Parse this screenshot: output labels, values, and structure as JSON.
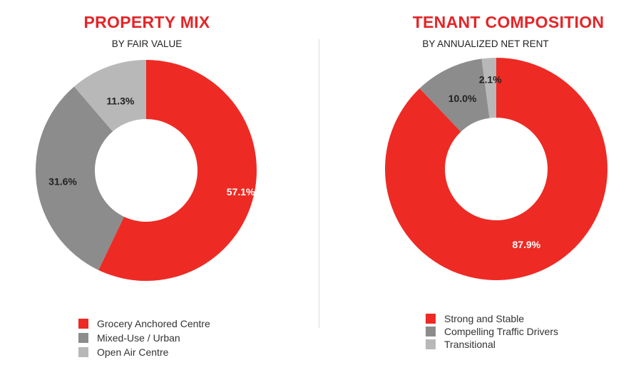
{
  "chart_data": [
    {
      "type": "pie",
      "title": "PROPERTY MIX",
      "subtitle": "BY FAIR VALUE",
      "categories": [
        "Grocery Anchored Centre",
        "Mixed-Use / Urban",
        "Open Air Centre"
      ],
      "values": [
        57.1,
        31.6,
        11.3
      ],
      "labels": [
        "57.1%",
        "31.6%",
        "11.3%"
      ],
      "colors": [
        "#ee2a24",
        "#8c8c8c",
        "#b8b8b8"
      ],
      "label_colors": [
        "#ffffff",
        "#222222",
        "#222222"
      ],
      "legend_position": "bottom"
    },
    {
      "type": "pie",
      "title": "TENANT COMPOSITION",
      "subtitle": "BY ANNUALIZED NET RENT",
      "categories": [
        "Strong and Stable",
        "Compelling Traffic Drivers",
        "Transitional"
      ],
      "values": [
        87.9,
        10.0,
        2.1
      ],
      "labels": [
        "87.9%",
        "10.0%",
        "2.1%"
      ],
      "colors": [
        "#ee2a24",
        "#8c8c8c",
        "#b8b8b8"
      ],
      "label_colors": [
        "#ffffff",
        "#222222",
        "#222222"
      ],
      "legend_position": "bottom"
    }
  ]
}
